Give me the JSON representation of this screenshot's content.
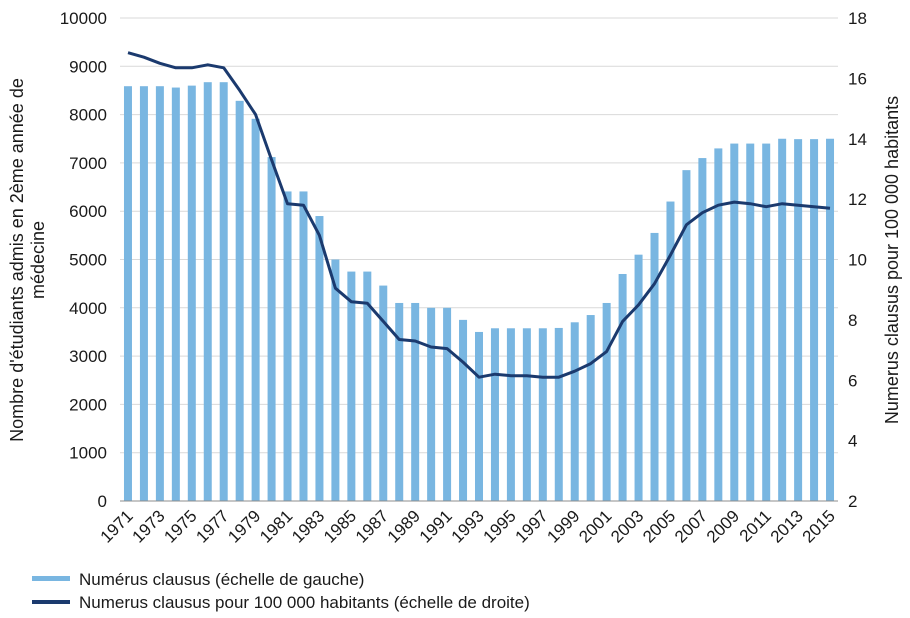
{
  "chart_data": {
    "type": "bar",
    "title": "",
    "categories": [
      1971,
      1972,
      1973,
      1974,
      1975,
      1976,
      1977,
      1978,
      1979,
      1980,
      1981,
      1982,
      1983,
      1984,
      1985,
      1986,
      1987,
      1988,
      1989,
      1990,
      1991,
      1992,
      1993,
      1994,
      1995,
      1996,
      1997,
      1998,
      1999,
      2000,
      2001,
      2002,
      2003,
      2004,
      2005,
      2006,
      2007,
      2008,
      2009,
      2010,
      2011,
      2012,
      2013,
      2014,
      2015
    ],
    "x_tick_labels": [
      "1971",
      "1973",
      "1975",
      "1977",
      "1979",
      "1981",
      "1983",
      "1985",
      "1987",
      "1989",
      "1991",
      "1993",
      "1995",
      "1997",
      "1999",
      "2001",
      "2003",
      "2005",
      "2007",
      "2009",
      "2011",
      "2013",
      "2015"
    ],
    "series": [
      {
        "name": "Numérus clausus (échelle de gauche)",
        "type": "bar",
        "axis": "left",
        "color": "#79b6e1",
        "values": [
          8588,
          8588,
          8588,
          8560,
          8600,
          8671,
          8671,
          8285,
          7913,
          7121,
          6409,
          6409,
          5900,
          5000,
          4750,
          4750,
          4460,
          4100,
          4100,
          4000,
          4000,
          3750,
          3500,
          3576,
          3576,
          3576,
          3576,
          3583,
          3700,
          3850,
          4100,
          4700,
          5100,
          5550,
          6200,
          6850,
          7100,
          7300,
          7400,
          7400,
          7400,
          7500,
          7492,
          7492,
          7500
        ]
      },
      {
        "name": "Numerus clausus pour 100 000 habitants (échelle de droite)",
        "type": "line",
        "axis": "right",
        "color": "#1b3a6e",
        "values": [
          16.85,
          16.7,
          16.5,
          16.35,
          16.35,
          16.45,
          16.35,
          15.6,
          14.8,
          13.3,
          11.85,
          11.8,
          10.8,
          9.05,
          8.6,
          8.55,
          7.95,
          7.35,
          7.3,
          7.1,
          7.05,
          6.6,
          6.1,
          6.2,
          6.15,
          6.15,
          6.1,
          6.1,
          6.3,
          6.55,
          6.95,
          7.95,
          8.5,
          9.2,
          10.15,
          11.15,
          11.55,
          11.8,
          11.9,
          11.85,
          11.75,
          11.85,
          11.8,
          11.75,
          11.7
        ]
      }
    ],
    "y_left": {
      "label": "Nombre d'étudiants admis en 2ème année de",
      "label_line2": "médecine",
      "lim": [
        0,
        10000
      ],
      "ticks": [
        "0",
        "1000",
        "2000",
        "3000",
        "4000",
        "5000",
        "6000",
        "7000",
        "8000",
        "9000",
        "10000"
      ]
    },
    "y_right": {
      "label": "Numerus clausus pour 100 000 habitants",
      "lim": [
        2,
        18
      ],
      "ticks": [
        "2",
        "4",
        "6",
        "8",
        "10",
        "12",
        "14",
        "16",
        "18"
      ]
    },
    "grid": true,
    "legend_position": "bottom-left"
  }
}
